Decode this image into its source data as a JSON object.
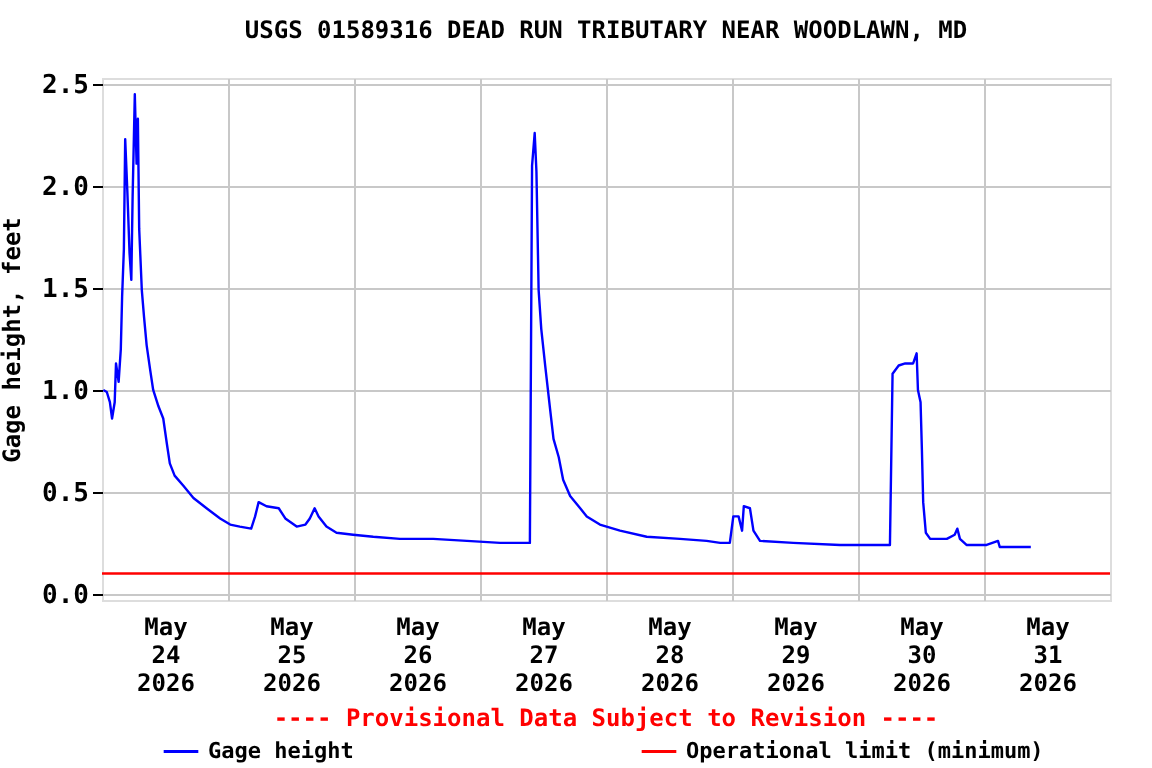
{
  "chart_data": {
    "type": "line",
    "title": "USGS 01589316 DEAD RUN TRIBUTARY NEAR WOODLAWN, MD",
    "ylabel": "Gage height, feet",
    "annotations": [
      "---- Provisional Data Subject to Revision ----"
    ],
    "legend": "bottom",
    "grid": true,
    "line_style": "solid",
    "marker": "none",
    "xlim": [
      "2026-05-24",
      "2026-06-01"
    ],
    "xticks": [
      {
        "value": "2026-05-24T12:00",
        "label": "May 24 2026"
      },
      {
        "value": "2026-05-25T12:00",
        "label": "May 25 2026"
      },
      {
        "value": "2026-05-26T12:00",
        "label": "May 26 2026"
      },
      {
        "value": "2026-05-27T12:00",
        "label": "May 27 2026"
      },
      {
        "value": "2026-05-28T12:00",
        "label": "May 28 2026"
      },
      {
        "value": "2026-05-29T12:00",
        "label": "May 29 2026"
      },
      {
        "value": "2026-05-30T12:00",
        "label": "May 30 2026"
      },
      {
        "value": "2026-05-31T12:00",
        "label": "May 31 2026"
      },
      {
        "value": "2026-05-25",
        "label": null
      },
      {
        "value": "2026-05-26",
        "label": null
      },
      {
        "value": "2026-05-27",
        "label": null
      },
      {
        "value": "2026-05-28",
        "label": null
      },
      {
        "value": "2026-05-29",
        "label": null
      },
      {
        "value": "2026-05-30",
        "label": null
      },
      {
        "value": "2026-05-31",
        "label": null
      }
    ],
    "ylim": [
      -0.03,
      2.53
    ],
    "yticks": [
      {
        "value": 0,
        "label": "0.0"
      },
      {
        "value": 0.5,
        "label": "0.5"
      },
      {
        "value": 1,
        "label": "1.0"
      },
      {
        "value": 1.5,
        "label": "1.5"
      },
      {
        "value": 2,
        "label": "2.0"
      },
      {
        "value": 2.5,
        "label": "2.5"
      }
    ],
    "ref_lines": [
      {
        "axis": "y",
        "value": 0.1,
        "label": "Operational limit (minimum)",
        "color": "#ff0000"
      }
    ],
    "series": [
      {
        "name": "Gage height",
        "color": "#0000ff",
        "x": [
          "2026-05-24T00:15",
          "2026-05-24T00:55",
          "2026-05-24T01:30",
          "2026-05-24T01:55",
          "2026-05-24T02:25",
          "2026-05-24T02:40",
          "2026-05-24T03:10",
          "2026-05-24T03:35",
          "2026-05-24T03:50",
          "2026-05-24T04:10",
          "2026-05-24T04:25",
          "2026-05-24T04:50",
          "2026-05-24T05:15",
          "2026-05-24T05:35",
          "2026-05-24T05:50",
          "2026-05-24T06:15",
          "2026-05-24T06:35",
          "2026-05-24T06:50",
          "2026-05-24T07:05",
          "2026-05-24T07:35",
          "2026-05-24T08:00",
          "2026-05-24T08:30",
          "2026-05-24T09:10",
          "2026-05-24T09:45",
          "2026-05-24T10:45",
          "2026-05-24T11:40",
          "2026-05-24T12:20",
          "2026-05-24T12:55",
          "2026-05-24T13:50",
          "2026-05-24T15:30",
          "2026-05-24T17:25",
          "2026-05-24T19:55",
          "2026-05-24T22:30",
          "2026-05-25T00:25",
          "2026-05-25T02:15",
          "2026-05-25T04:25",
          "2026-05-25T05:10",
          "2026-05-25T05:50",
          "2026-05-25T07:20",
          "2026-05-25T09:40",
          "2026-05-25T10:55",
          "2026-05-25T13:05",
          "2026-05-25T14:45",
          "2026-05-25T15:35",
          "2026-05-25T16:30",
          "2026-05-25T17:15",
          "2026-05-25T18:45",
          "2026-05-25T20:40",
          "2026-05-25T23:50",
          "2026-05-26T03:40",
          "2026-05-26T08:45",
          "2026-05-26T15:05",
          "2026-05-26T21:30",
          "2026-05-27T03:50",
          "2026-05-27T09:30",
          "2026-05-27T09:55",
          "2026-05-27T10:25",
          "2026-05-27T10:45",
          "2026-05-27T11:10",
          "2026-05-27T11:40",
          "2026-05-27T12:25",
          "2026-05-27T13:20",
          "2026-05-27T14:00",
          "2026-05-27T15:00",
          "2026-05-27T15:50",
          "2026-05-27T17:10",
          "2026-05-27T19:05",
          "2026-05-27T20:20",
          "2026-05-27T22:50",
          "2026-05-28T02:40",
          "2026-05-28T07:45",
          "2026-05-28T14:05",
          "2026-05-28T19:10",
          "2026-05-28T21:45",
          "2026-05-28T23:35",
          "2026-05-29T00:15",
          "2026-05-29T01:15",
          "2026-05-29T01:55",
          "2026-05-29T02:15",
          "2026-05-29T03:25",
          "2026-05-29T04:05",
          "2026-05-29T05:20",
          "2026-05-29T11:40",
          "2026-05-29T20:35",
          "2026-05-30T06:05",
          "2026-05-30T06:35",
          "2026-05-30T07:45",
          "2026-05-30T09:00",
          "2026-05-30T10:30",
          "2026-05-30T11:10",
          "2026-05-30T11:25",
          "2026-05-30T11:55",
          "2026-05-30T12:10",
          "2026-05-30T12:25",
          "2026-05-30T12:55",
          "2026-05-30T13:45",
          "2026-05-30T16:55",
          "2026-05-30T18:25",
          "2026-05-30T18:55",
          "2026-05-30T19:25",
          "2026-05-30T20:40",
          "2026-05-31T00:30",
          "2026-05-31T02:40",
          "2026-05-31T03:00",
          "2026-05-31T06:50",
          "2026-05-31T08:55"
        ],
        "values": [
          1.0,
          0.99,
          0.94,
          0.86,
          0.94,
          1.13,
          1.04,
          1.2,
          1.46,
          1.69,
          2.23,
          1.97,
          1.67,
          1.54,
          1.95,
          2.45,
          2.11,
          2.33,
          1.79,
          1.49,
          1.36,
          1.22,
          1.1,
          1.0,
          0.92,
          0.86,
          0.74,
          0.64,
          0.58,
          0.53,
          0.47,
          0.42,
          0.37,
          0.34,
          0.33,
          0.32,
          0.38,
          0.45,
          0.43,
          0.42,
          0.37,
          0.33,
          0.34,
          0.37,
          0.42,
          0.38,
          0.33,
          0.3,
          0.29,
          0.28,
          0.27,
          0.27,
          0.26,
          0.25,
          0.25,
          2.1,
          2.26,
          2.07,
          1.49,
          1.3,
          1.12,
          0.91,
          0.76,
          0.67,
          0.56,
          0.48,
          0.42,
          0.38,
          0.34,
          0.31,
          0.28,
          0.27,
          0.26,
          0.25,
          0.25,
          0.38,
          0.38,
          0.31,
          0.43,
          0.42,
          0.31,
          0.26,
          0.25,
          0.24,
          0.24,
          1.08,
          1.12,
          1.13,
          1.13,
          1.18,
          1.0,
          0.94,
          0.71,
          0.45,
          0.3,
          0.27,
          0.27,
          0.29,
          0.32,
          0.27,
          0.24,
          0.24,
          0.26,
          0.23,
          0.23,
          0.23
        ]
      }
    ]
  }
}
